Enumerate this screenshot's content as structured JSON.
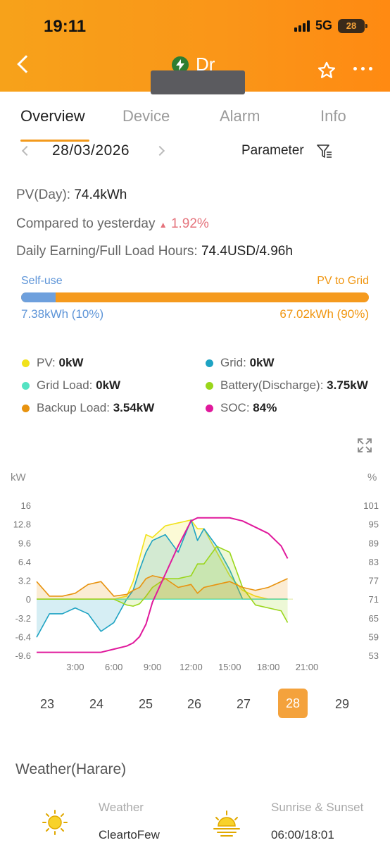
{
  "status": {
    "time": "19:11",
    "network": "5G",
    "battery": "28"
  },
  "header": {
    "site_name": "Dr"
  },
  "tabs": [
    "Overview",
    "Device",
    "Alarm",
    "Info"
  ],
  "date": "28/03/2026",
  "parameter_label": "Parameter",
  "summary": {
    "pv_day_label": "PV(Day):",
    "pv_day_value": "74.4kWh",
    "compared_label": "Compared to yesterday",
    "compared_value": "1.92%",
    "earning_label": "Daily Earning/Full Load Hours:",
    "earning_value": "74.4USD/4.96h"
  },
  "usage_bar": {
    "self_use_label": "Self-use",
    "pv_to_grid_label": "PV to Grid",
    "self_use_value": "7.38kWh (10%)",
    "pv_to_grid_value": "67.02kWh (90%)",
    "self_use_fraction": 0.1
  },
  "legend": [
    {
      "label": "PV:",
      "value": "0kW",
      "color": "#f1e21b"
    },
    {
      "label": "Grid:",
      "value": "0kW",
      "color": "#1ea3c3"
    },
    {
      "label": "Grid Load:",
      "value": "0kW",
      "color": "#54e3c3"
    },
    {
      "label": "Battery(Discharge):",
      "value": "3.75kW",
      "color": "#9ad61a"
    },
    {
      "label": "Backup Load:",
      "value": "3.54kW",
      "color": "#e8930f"
    },
    {
      "label": "SOC:",
      "value": "84%",
      "color": "#e0199c"
    }
  ],
  "chart_data": {
    "type": "line",
    "ylabel_left": "kW",
    "ylabel_right": "%",
    "left_ticks": [
      "16",
      "12.8",
      "9.6",
      "6.4",
      "3.2",
      "0",
      "-3.2",
      "-6.4",
      "-9.6"
    ],
    "right_ticks": [
      "101",
      "95",
      "89",
      "83",
      "77",
      "71",
      "65",
      "59",
      "53"
    ],
    "x_ticks": [
      "3:00",
      "6:00",
      "9:00",
      "12:00",
      "15:00",
      "18:00",
      "21:00"
    ],
    "ylim_left": [
      -9.6,
      16
    ],
    "ylim_right": [
      53,
      101
    ],
    "x_hours": [
      0,
      1,
      2,
      3,
      4,
      5,
      6,
      7,
      7.5,
      8,
      8.5,
      9,
      10,
      11,
      12,
      12.5,
      13,
      14,
      15,
      16,
      17,
      18,
      19,
      19.5
    ],
    "series": [
      {
        "name": "PV",
        "color": "#f1e21b",
        "values": [
          0,
          0,
          0,
          0,
          0,
          0,
          0,
          0.5,
          3,
          7,
          11,
          10.5,
          12.5,
          13,
          13.5,
          12,
          12,
          8,
          4,
          1.5,
          0.5,
          0,
          0,
          0
        ]
      },
      {
        "name": "Grid",
        "color": "#1ea3c3",
        "values": [
          -6.5,
          -2.5,
          -2.5,
          -1.5,
          -2.5,
          -5.5,
          -4,
          0,
          1.5,
          5,
          8,
          10,
          11,
          8,
          13.5,
          10,
          12,
          9,
          5,
          0,
          0,
          0,
          0,
          0
        ]
      },
      {
        "name": "Grid Load",
        "color": "#54e3c3",
        "values": [
          0,
          0,
          0,
          0,
          0,
          0,
          0,
          0,
          0,
          0,
          0,
          0,
          0,
          0,
          0,
          0,
          0,
          0,
          0,
          0,
          0,
          0,
          0,
          0
        ]
      },
      {
        "name": "Battery(Discharge)",
        "color": "#9ad61a",
        "values": [
          0,
          0,
          0,
          0,
          0,
          0,
          0,
          -1,
          -1.2,
          -0.8,
          0.5,
          2,
          3.5,
          3.5,
          4,
          6,
          6,
          9,
          8,
          2,
          -1,
          -1.5,
          -2,
          -4
        ]
      },
      {
        "name": "Backup Load",
        "color": "#e8930f",
        "values": [
          3,
          0.5,
          0.5,
          1,
          2.5,
          3,
          0.5,
          0.8,
          1.5,
          2,
          3.5,
          4,
          3.5,
          2,
          2.5,
          1,
          2,
          2.5,
          3,
          2,
          1.5,
          2,
          3,
          3.5
        ]
      },
      {
        "name": "SOC",
        "color": "#e0199c",
        "axis": "right",
        "values": [
          54,
          54,
          54,
          54,
          54,
          54,
          55,
          56,
          57,
          59,
          63,
          70,
          79,
          88,
          96,
          97,
          97,
          97,
          97,
          96,
          94,
          92,
          88,
          84
        ]
      }
    ]
  },
  "days": [
    "23",
    "24",
    "25",
    "26",
    "27",
    "28",
    "29"
  ],
  "selected_day": "28",
  "weather": {
    "title": "Weather(Harare)",
    "weather_label": "Weather",
    "weather_value": "CleartoFew",
    "sun_label": "Sunrise & Sunset",
    "sun_value": "06:00/18:01"
  }
}
